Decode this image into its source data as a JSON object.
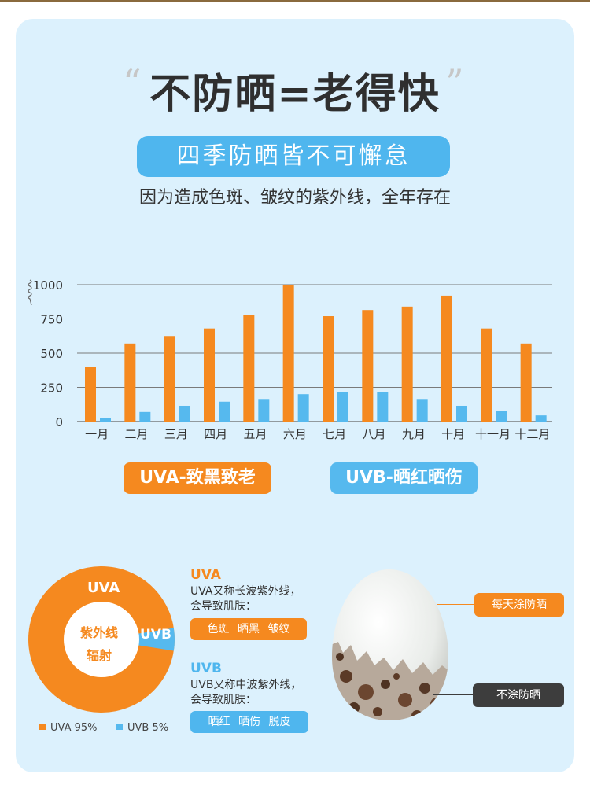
{
  "header": {
    "quote_open": "“",
    "quote_close": "”",
    "headline": "不防晒=老得快",
    "pill": "四季防晒皆不可懈怠",
    "subline": "因为造成色斑、皱纹的紫外线，全年存在"
  },
  "chart_data": {
    "type": "bar",
    "categories": [
      "一月",
      "二月",
      "三月",
      "四月",
      "五月",
      "六月",
      "七月",
      "八月",
      "九月",
      "十月",
      "十一月",
      "十二月"
    ],
    "series": [
      {
        "values": [
          400,
          570,
          625,
          680,
          780,
          1000,
          770,
          815,
          840,
          920,
          680,
          570
        ],
        "color": "#f5891f"
      },
      {
        "values": [
          25,
          70,
          115,
          145,
          165,
          200,
          215,
          215,
          165,
          115,
          75,
          45
        ],
        "color": "#56b9ee"
      }
    ],
    "yticks": [
      0,
      250,
      500,
      750,
      1000
    ],
    "ylim": [
      0,
      1000
    ],
    "grid": true
  },
  "legend": {
    "uva": "UVA-致黑致老",
    "uvb": "UVB-晒红晒伤"
  },
  "pie": {
    "uva_label": "UVA",
    "uvb_label": "UVB",
    "center_line1": "紫外线",
    "center_line2": "辐射",
    "uva_value": 95,
    "uvb_value": 5,
    "legend_uva": "UVA 95%",
    "legend_uvb": "UVB 5%",
    "colors": {
      "uva": "#f5891f",
      "uvb": "#56b9ee"
    }
  },
  "info": {
    "uva_title": "UVA",
    "uva_line1": "UVA又称长波紫外线，",
    "uva_line2": "会导致肌肤：",
    "uva_tags": "色斑 晒黑 皱纹",
    "uvb_title": "UVB",
    "uvb_line1": "UVB又称中波紫外线，",
    "uvb_line2": "会导致肌肤：",
    "uvb_tags": "晒红 晒伤 脱皮"
  },
  "callouts": {
    "daily": "每天涂防晒",
    "none": "不涂防晒"
  }
}
